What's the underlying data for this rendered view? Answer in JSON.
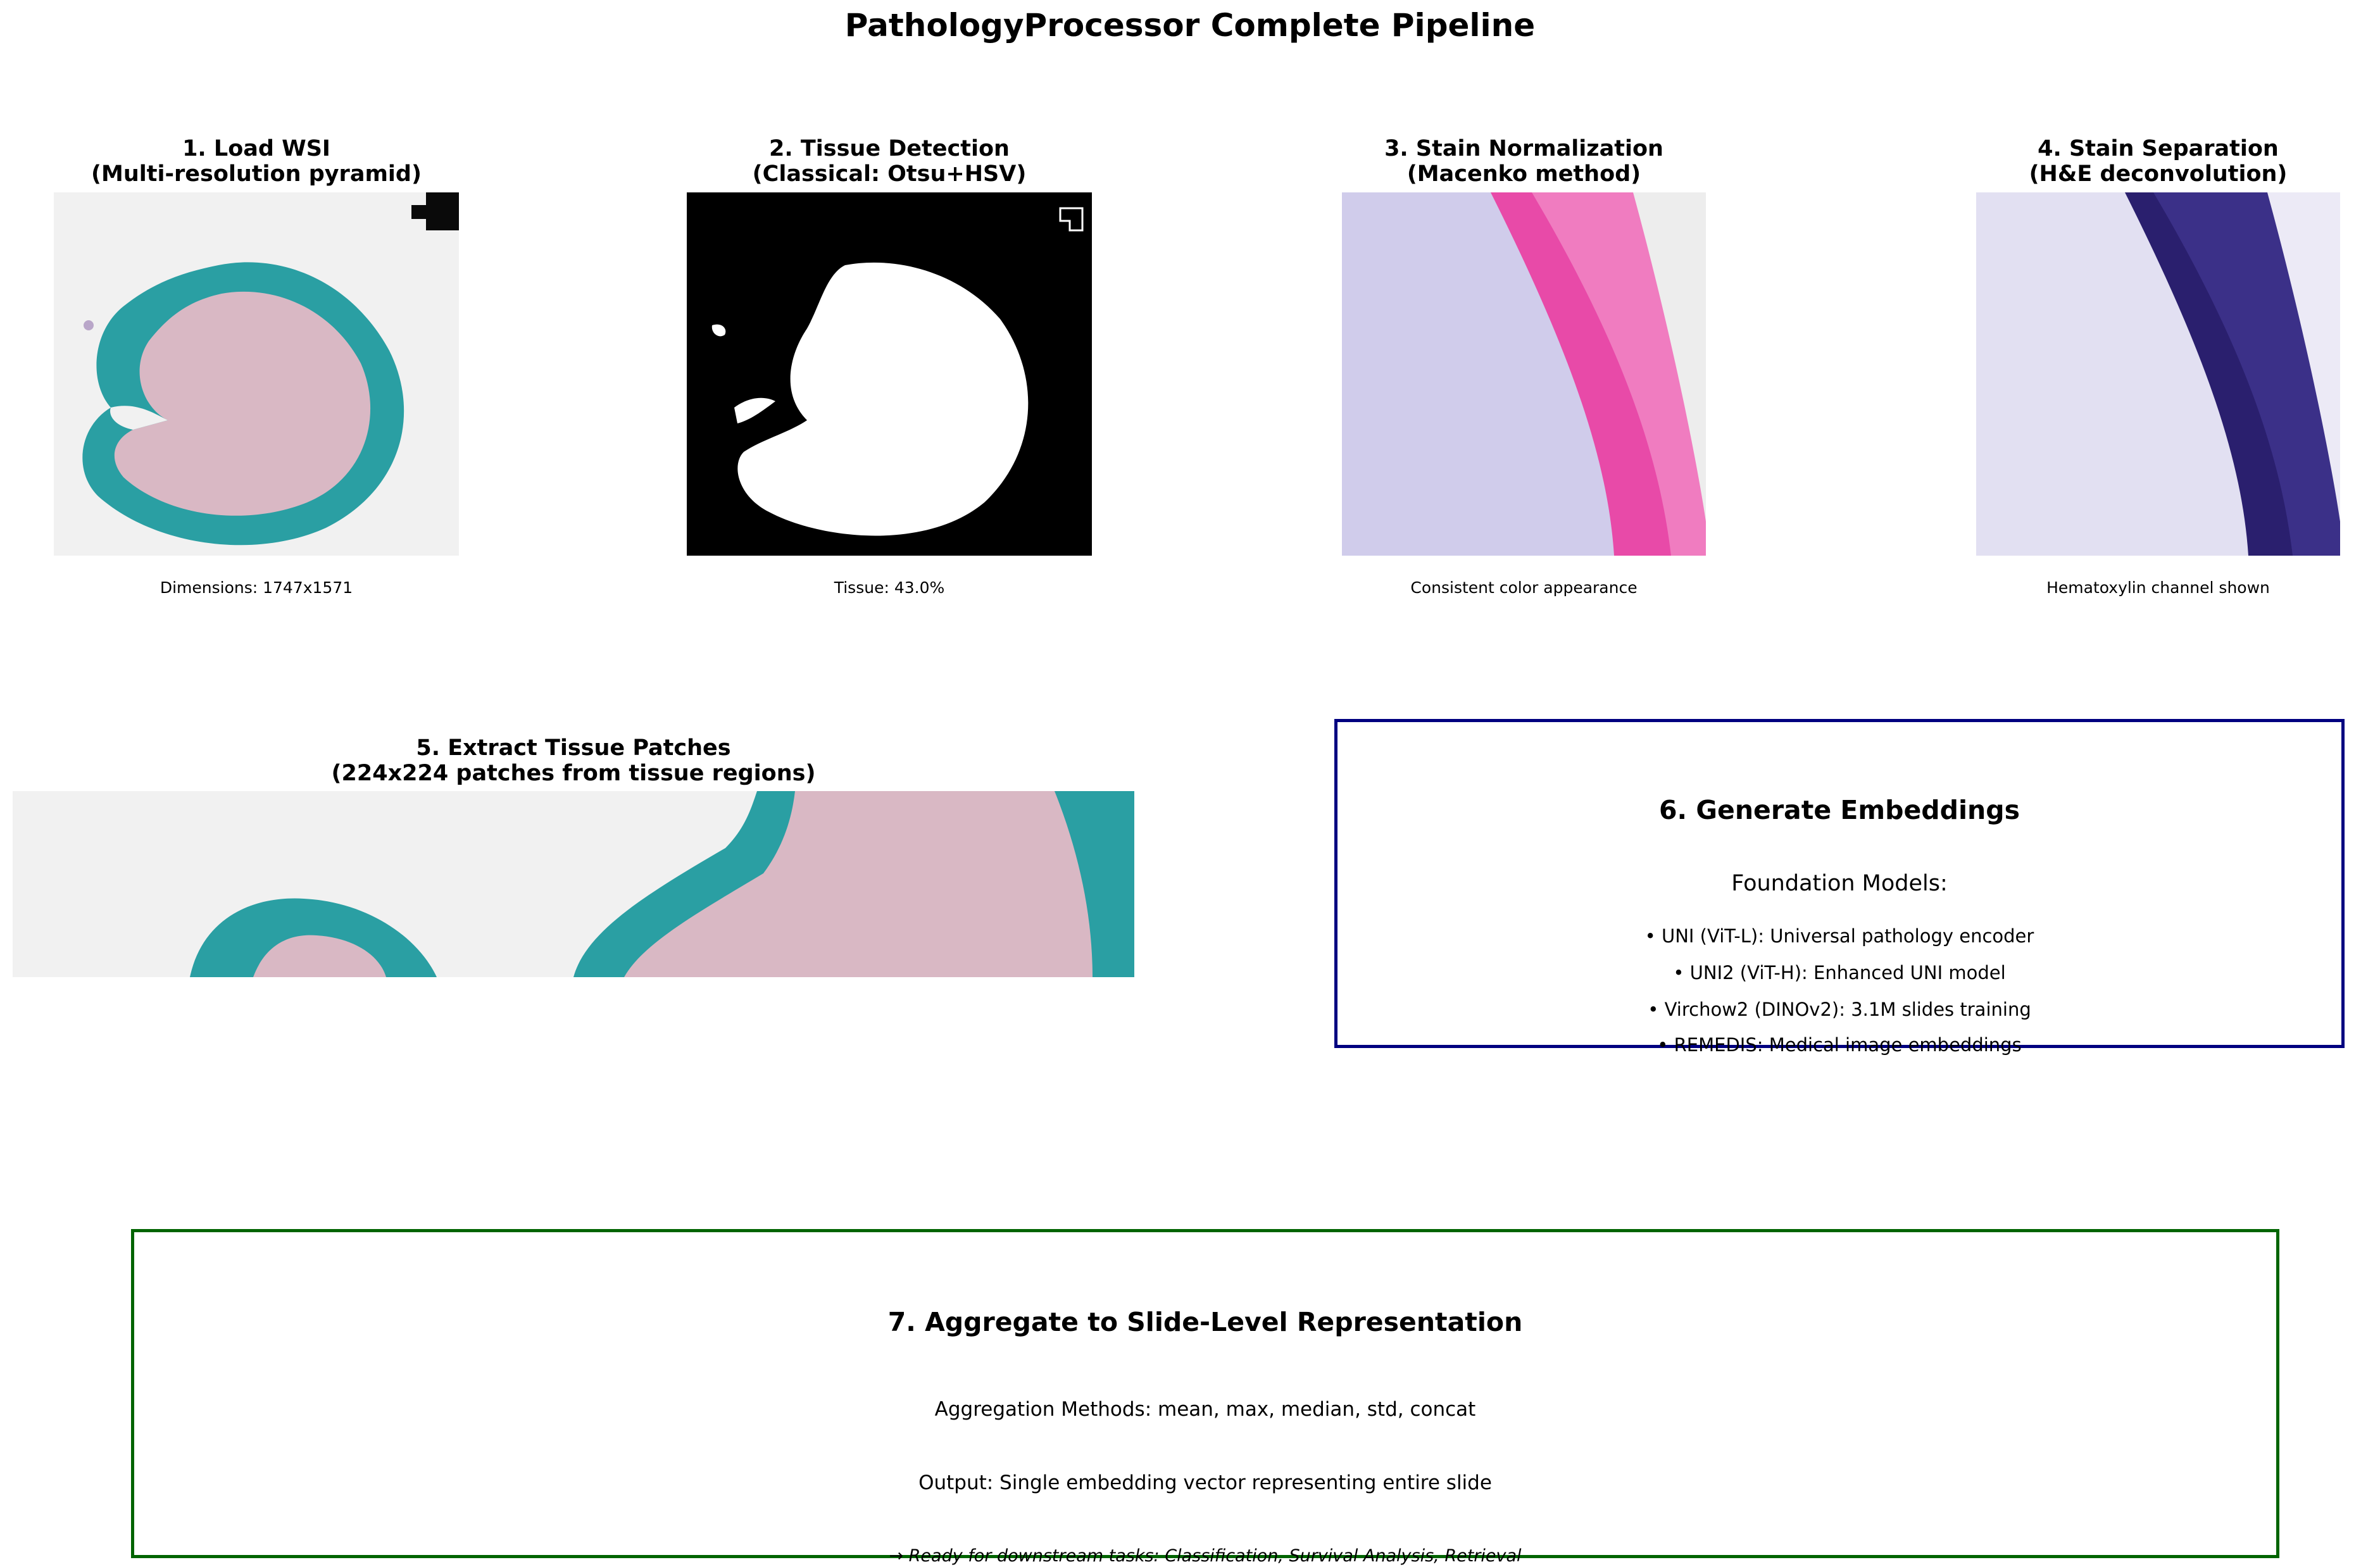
{
  "title": "PathologyProcessor Complete Pipeline",
  "panels": [
    {
      "title1": "1. Load WSI",
      "title2": "(Multi-resolution pyramid)",
      "caption": "Dimensions: 1747x1571"
    },
    {
      "title1": "2. Tissue Detection",
      "title2": "(Classical: Otsu+HSV)",
      "caption": "Tissue: 43.0%"
    },
    {
      "title1": "3. Stain Normalization",
      "title2": "(Macenko method)",
      "caption": "Consistent color appearance"
    },
    {
      "title1": "4. Stain Separation",
      "title2": "(H&E deconvolution)",
      "caption": "Hematoxylin channel shown"
    },
    {
      "title1": "5. Extract Tissue Patches",
      "title2": "(224x224 patches from tissue regions)"
    }
  ],
  "embeddings": {
    "title": "6. Generate Embeddings",
    "subtitle": "Foundation Models:",
    "items": [
      "• UNI (ViT-L): Universal pathology encoder",
      "• UNI2 (ViT-H): Enhanced UNI model",
      "• Virchow2 (DINOv2): 3.1M slides training",
      "• REMEDIS: Medical image embeddings"
    ],
    "border_color": "#000080"
  },
  "aggregate": {
    "title": "7. Aggregate to Slide-Level Representation",
    "methods": "Aggregation Methods: mean, max, median, std, concat",
    "output": "Output: Single embedding vector representing entire slide",
    "ready": "→ Ready for downstream tasks: Classification, Survival Analysis, Retrieval",
    "border_color": "#006400"
  },
  "colors": {
    "teal_stain": "#2a9fa3",
    "pink_stain": "#e84aa8",
    "hematoxylin": "#2a1f6e"
  }
}
